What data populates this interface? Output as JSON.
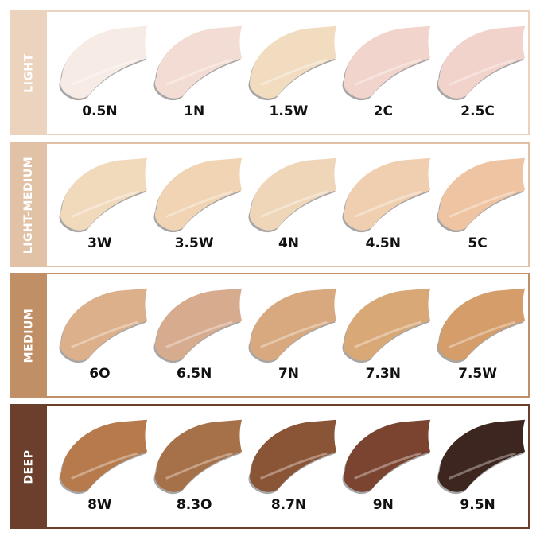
{
  "groups": [
    {
      "name": "LIGHT",
      "color": "#ecd3bd",
      "shades": [
        {
          "label": "0.5N",
          "color": "#f7ebe5"
        },
        {
          "label": "1N",
          "color": "#f3dcd3"
        },
        {
          "label": "1.5W",
          "color": "#f2dcc0"
        },
        {
          "label": "2C",
          "color": "#f1d4cb"
        },
        {
          "label": "2.5C",
          "color": "#f2d3cb"
        }
      ]
    },
    {
      "name": "LIGHT-MEDIUM",
      "color": "#e2c2a6",
      "shades": [
        {
          "label": "3W",
          "color": "#f1d9bc"
        },
        {
          "label": "3.5W",
          "color": "#f0d4b3"
        },
        {
          "label": "4N",
          "color": "#efd6b9"
        },
        {
          "label": "4.5N",
          "color": "#efcfb0"
        },
        {
          "label": "5C",
          "color": "#eec4a2"
        }
      ]
    },
    {
      "name": "MEDIUM",
      "color": "#c08f66",
      "shades": [
        {
          "label": "6O",
          "color": "#dcb08a"
        },
        {
          "label": "6.5N",
          "color": "#d6ab8e"
        },
        {
          "label": "7N",
          "color": "#d8a97f"
        },
        {
          "label": "7.3N",
          "color": "#d9a877"
        },
        {
          "label": "7.5W",
          "color": "#d49d6a"
        }
      ]
    },
    {
      "name": "DEEP",
      "color": "#6b3f2c",
      "shades": [
        {
          "label": "8W",
          "color": "#b67a4c"
        },
        {
          "label": "8.3O",
          "color": "#a67148"
        },
        {
          "label": "8.7N",
          "color": "#8a5436"
        },
        {
          "label": "9N",
          "color": "#7a4430"
        },
        {
          "label": "9.5N",
          "color": "#3e2620"
        }
      ]
    }
  ]
}
